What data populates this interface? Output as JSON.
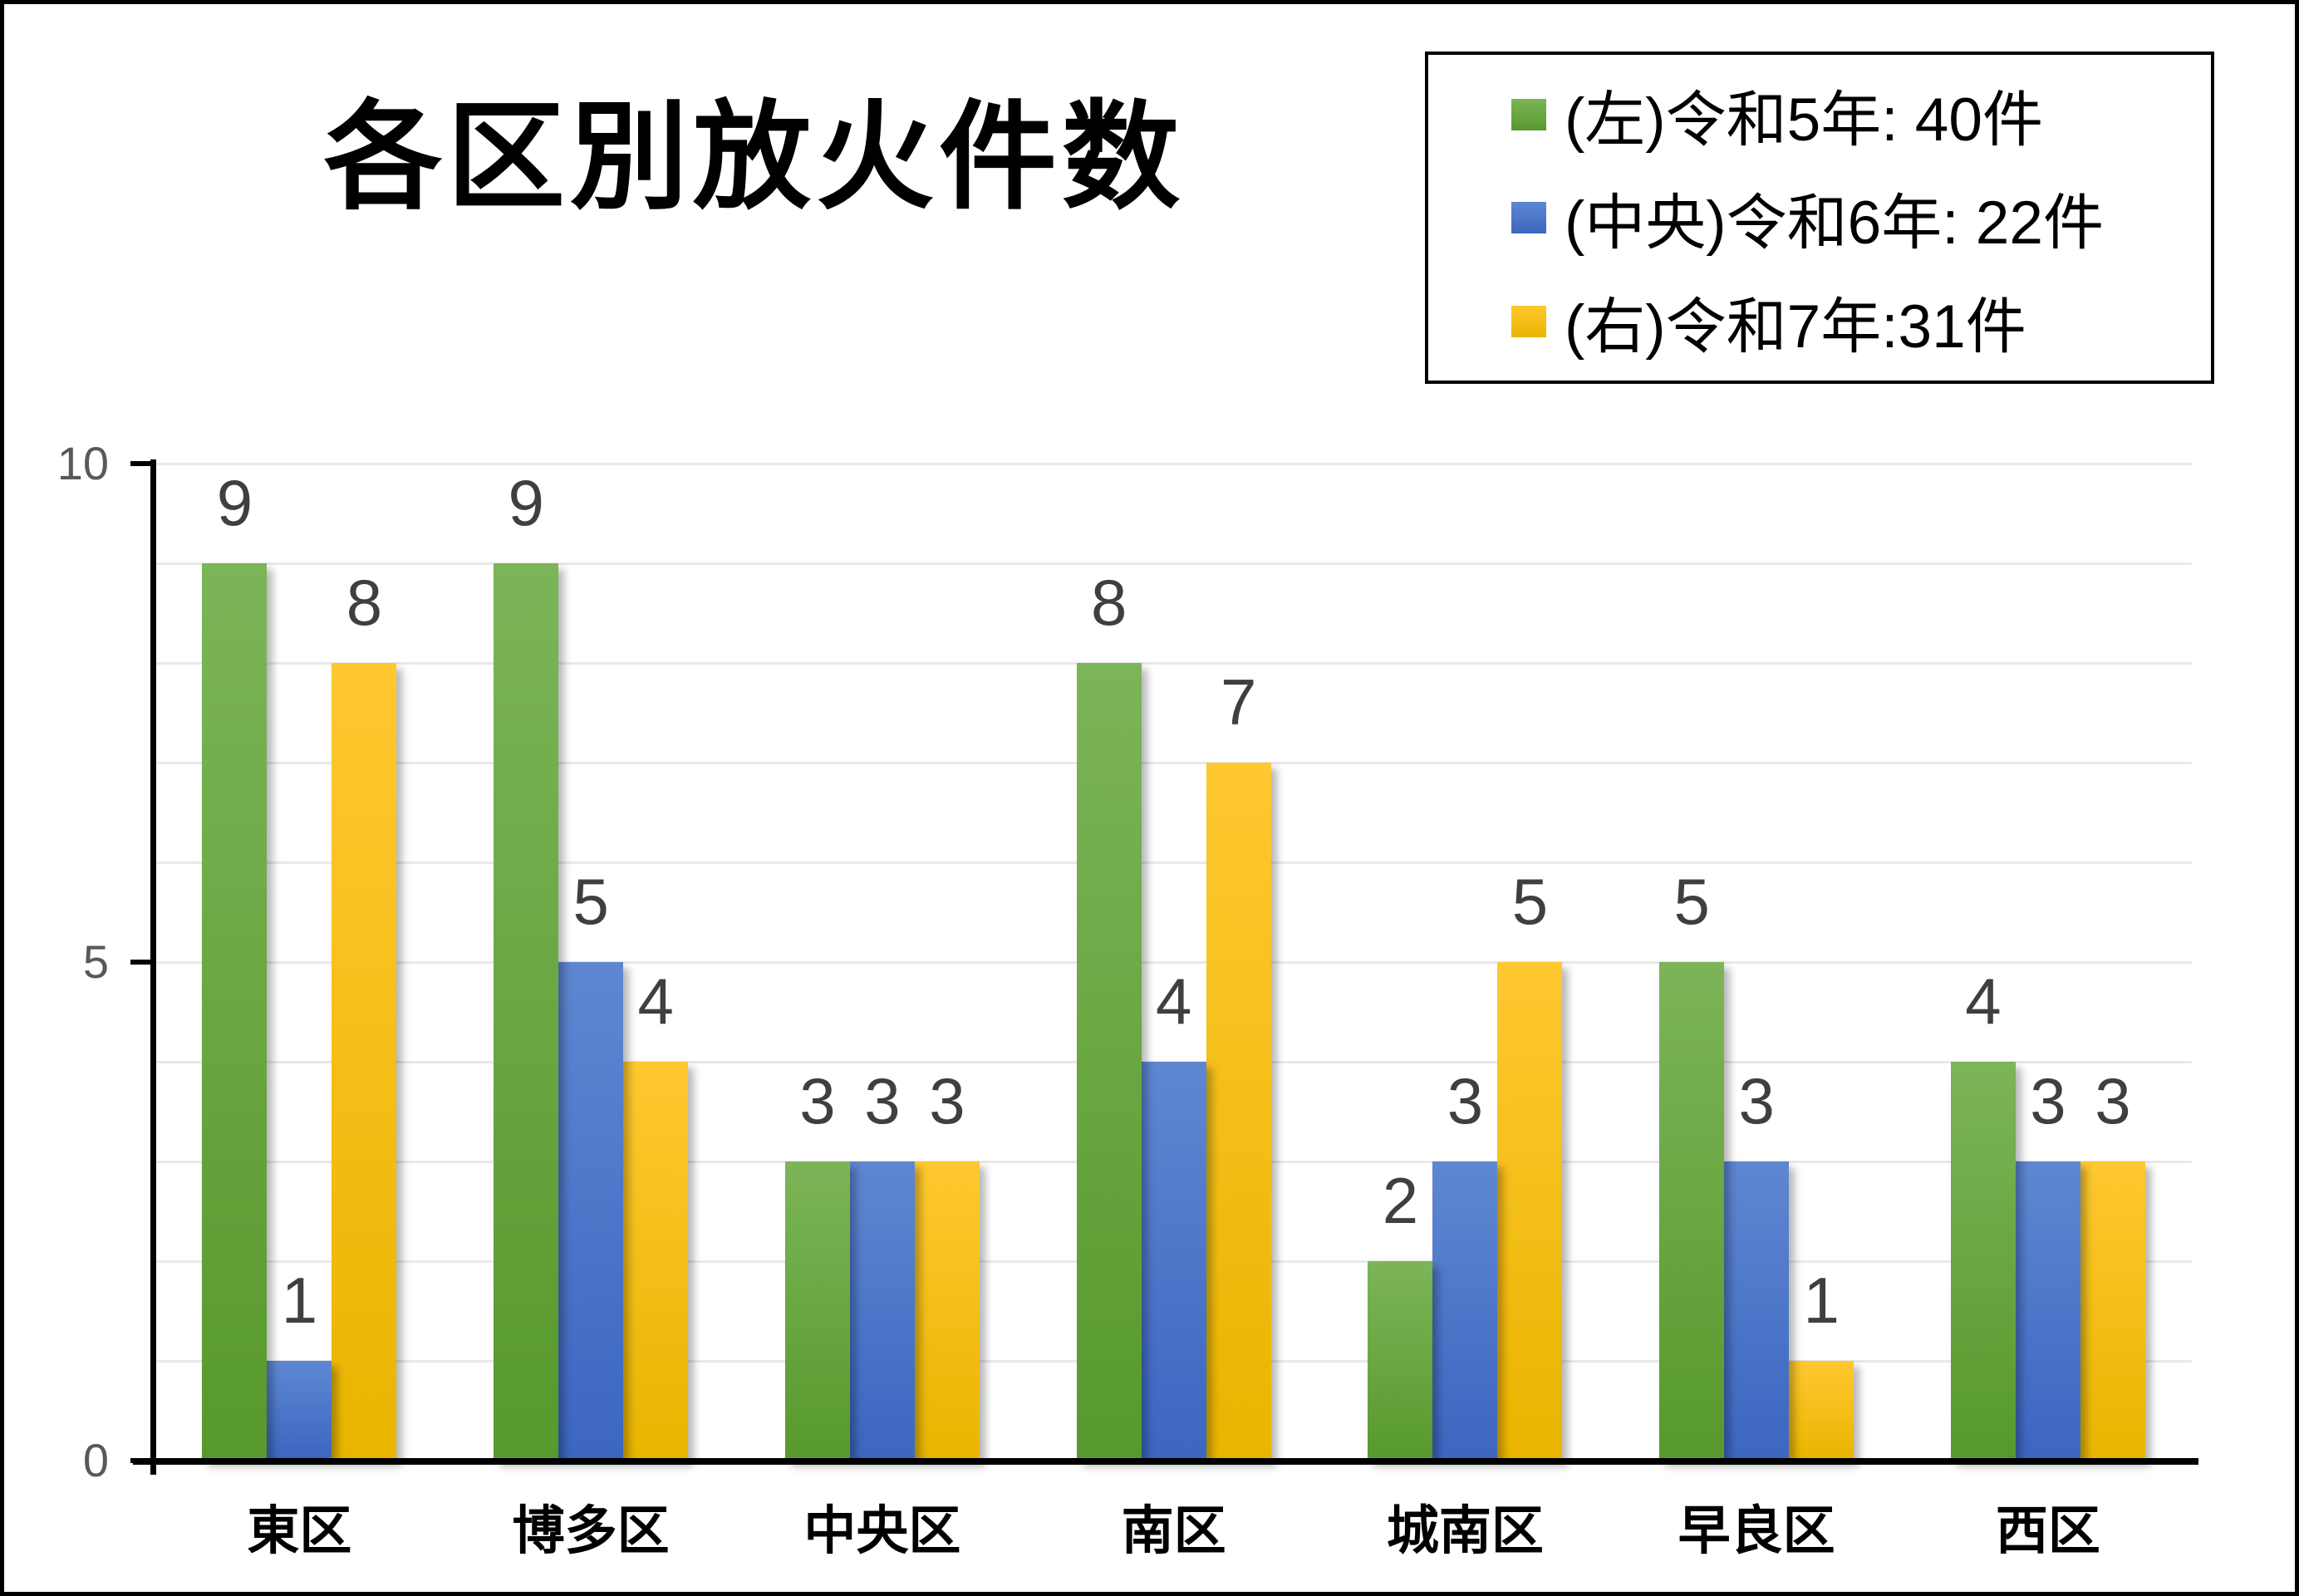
{
  "title": "各区別放火件数",
  "canvas": {
    "background": "#ffffff",
    "border_color": "#000000"
  },
  "legend": {
    "position": "top-right",
    "items": [
      {
        "label": "(左)令和5年: 40件",
        "color": "#6fae47"
      },
      {
        "label": "(中央)令和6年: 22件",
        "color": "#4472c4"
      },
      {
        "label": "(右)令和7年:31件",
        "color": "#ffc000"
      }
    ]
  },
  "chart_data": {
    "type": "bar",
    "title": "各区別放火件数",
    "categories": [
      "東区",
      "博多区",
      "中央区",
      "南区",
      "城南区",
      "早良区",
      "西区"
    ],
    "series": [
      {
        "name": "(左)令和5年: 40件",
        "color": "#6fae47",
        "gradient_top": "#7cb558",
        "gradient_bottom": "#57992c",
        "values": [
          9,
          9,
          3,
          8,
          2,
          5,
          4
        ]
      },
      {
        "name": "(中央)令和6年: 22件",
        "color": "#4472c4",
        "gradient_top": "#5e87d2",
        "gradient_bottom": "#3c66c0",
        "values": [
          1,
          5,
          3,
          4,
          3,
          3,
          3
        ]
      },
      {
        "name": "(右)令和7年:31件",
        "color": "#ffc000",
        "gradient_top": "#ffc830",
        "gradient_bottom": "#e9b500",
        "values": [
          8,
          4,
          3,
          7,
          5,
          1,
          3
        ]
      }
    ],
    "data_labels": true,
    "data_label_color": "#3f3f3f",
    "grid": true,
    "gridline_interval": 1,
    "legend_position": "top-right",
    "xlabel": "",
    "ylabel": "",
    "y_axis": {
      "min": 0,
      "max": 10,
      "ticks": [
        0,
        5,
        10
      ],
      "tick_color": "#595959"
    }
  }
}
